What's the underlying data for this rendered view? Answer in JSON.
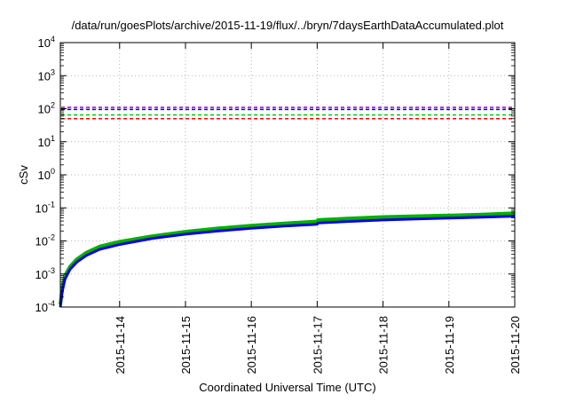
{
  "chart_data": {
    "type": "line",
    "title": "/data/run/goesPlots/archive/2015-11-19/flux/../bryn/7daysEarthDataAccumulated.plot",
    "xlabel": "Coordinated Universal Time (UTC)",
    "ylabel": "cSv",
    "y_scale": "log",
    "ylim_exponents": [
      -4,
      4
    ],
    "y_ticks": [
      {
        "base": "10",
        "exp": "-4",
        "value": -4
      },
      {
        "base": "10",
        "exp": "-3",
        "value": -3
      },
      {
        "base": "10",
        "exp": "-2",
        "value": -2
      },
      {
        "base": "10",
        "exp": "-1",
        "value": -1
      },
      {
        "base": "10",
        "exp": "0",
        "value": 0
      },
      {
        "base": "10",
        "exp": "1",
        "value": 1
      },
      {
        "base": "10",
        "exp": "2",
        "value": 2
      },
      {
        "base": "10",
        "exp": "3",
        "value": 3
      },
      {
        "base": "10",
        "exp": "4",
        "value": 4
      }
    ],
    "xlim_days": [
      13.1,
      20.0
    ],
    "x_ticks": [
      {
        "label": "2015-11-14",
        "day": 14
      },
      {
        "label": "2015-11-15",
        "day": 15
      },
      {
        "label": "2015-11-16",
        "day": 16
      },
      {
        "label": "2015-11-17",
        "day": 17
      },
      {
        "label": "2015-11-18",
        "day": 18
      },
      {
        "label": "2015-11-19",
        "day": 19
      },
      {
        "label": "2015-11-20",
        "day": 20
      }
    ],
    "grid": true,
    "threshold_lines": [
      {
        "color": "#ff0000",
        "value": 50
      },
      {
        "color": "#00cc00",
        "value": 65
      },
      {
        "color": "#9900cc",
        "value": 110
      },
      {
        "color": "#0000ff",
        "value": 95
      }
    ],
    "series": [
      {
        "color": "#00b000",
        "points": [
          [
            13.1,
            0.00012
          ],
          [
            13.13,
            0.0004
          ],
          [
            13.17,
            0.0009
          ],
          [
            13.25,
            0.0017
          ],
          [
            13.35,
            0.0028
          ],
          [
            13.5,
            0.0045
          ],
          [
            13.7,
            0.0068
          ],
          [
            14.0,
            0.0095
          ],
          [
            14.5,
            0.014
          ],
          [
            15.0,
            0.019
          ],
          [
            15.5,
            0.024
          ],
          [
            16.0,
            0.029
          ],
          [
            16.5,
            0.034
          ],
          [
            17.0,
            0.039
          ],
          [
            17.01,
            0.043
          ],
          [
            17.5,
            0.048
          ],
          [
            18.0,
            0.053
          ],
          [
            18.5,
            0.056
          ],
          [
            19.0,
            0.059
          ],
          [
            19.5,
            0.063
          ],
          [
            20.0,
            0.069
          ]
        ]
      },
      {
        "color": "#0000dd",
        "points": [
          [
            13.1,
            0.0001
          ],
          [
            13.13,
            0.0003
          ],
          [
            13.17,
            0.0007
          ],
          [
            13.25,
            0.0014
          ],
          [
            13.35,
            0.0023
          ],
          [
            13.5,
            0.0037
          ],
          [
            13.7,
            0.0056
          ],
          [
            14.0,
            0.0078
          ],
          [
            14.5,
            0.012
          ],
          [
            15.0,
            0.016
          ],
          [
            15.5,
            0.02
          ],
          [
            16.0,
            0.024
          ],
          [
            16.5,
            0.028
          ],
          [
            17.0,
            0.032
          ],
          [
            17.01,
            0.035
          ],
          [
            17.5,
            0.039
          ],
          [
            18.0,
            0.043
          ],
          [
            18.5,
            0.046
          ],
          [
            19.0,
            0.049
          ],
          [
            19.5,
            0.052
          ],
          [
            20.0,
            0.056
          ]
        ]
      }
    ]
  }
}
